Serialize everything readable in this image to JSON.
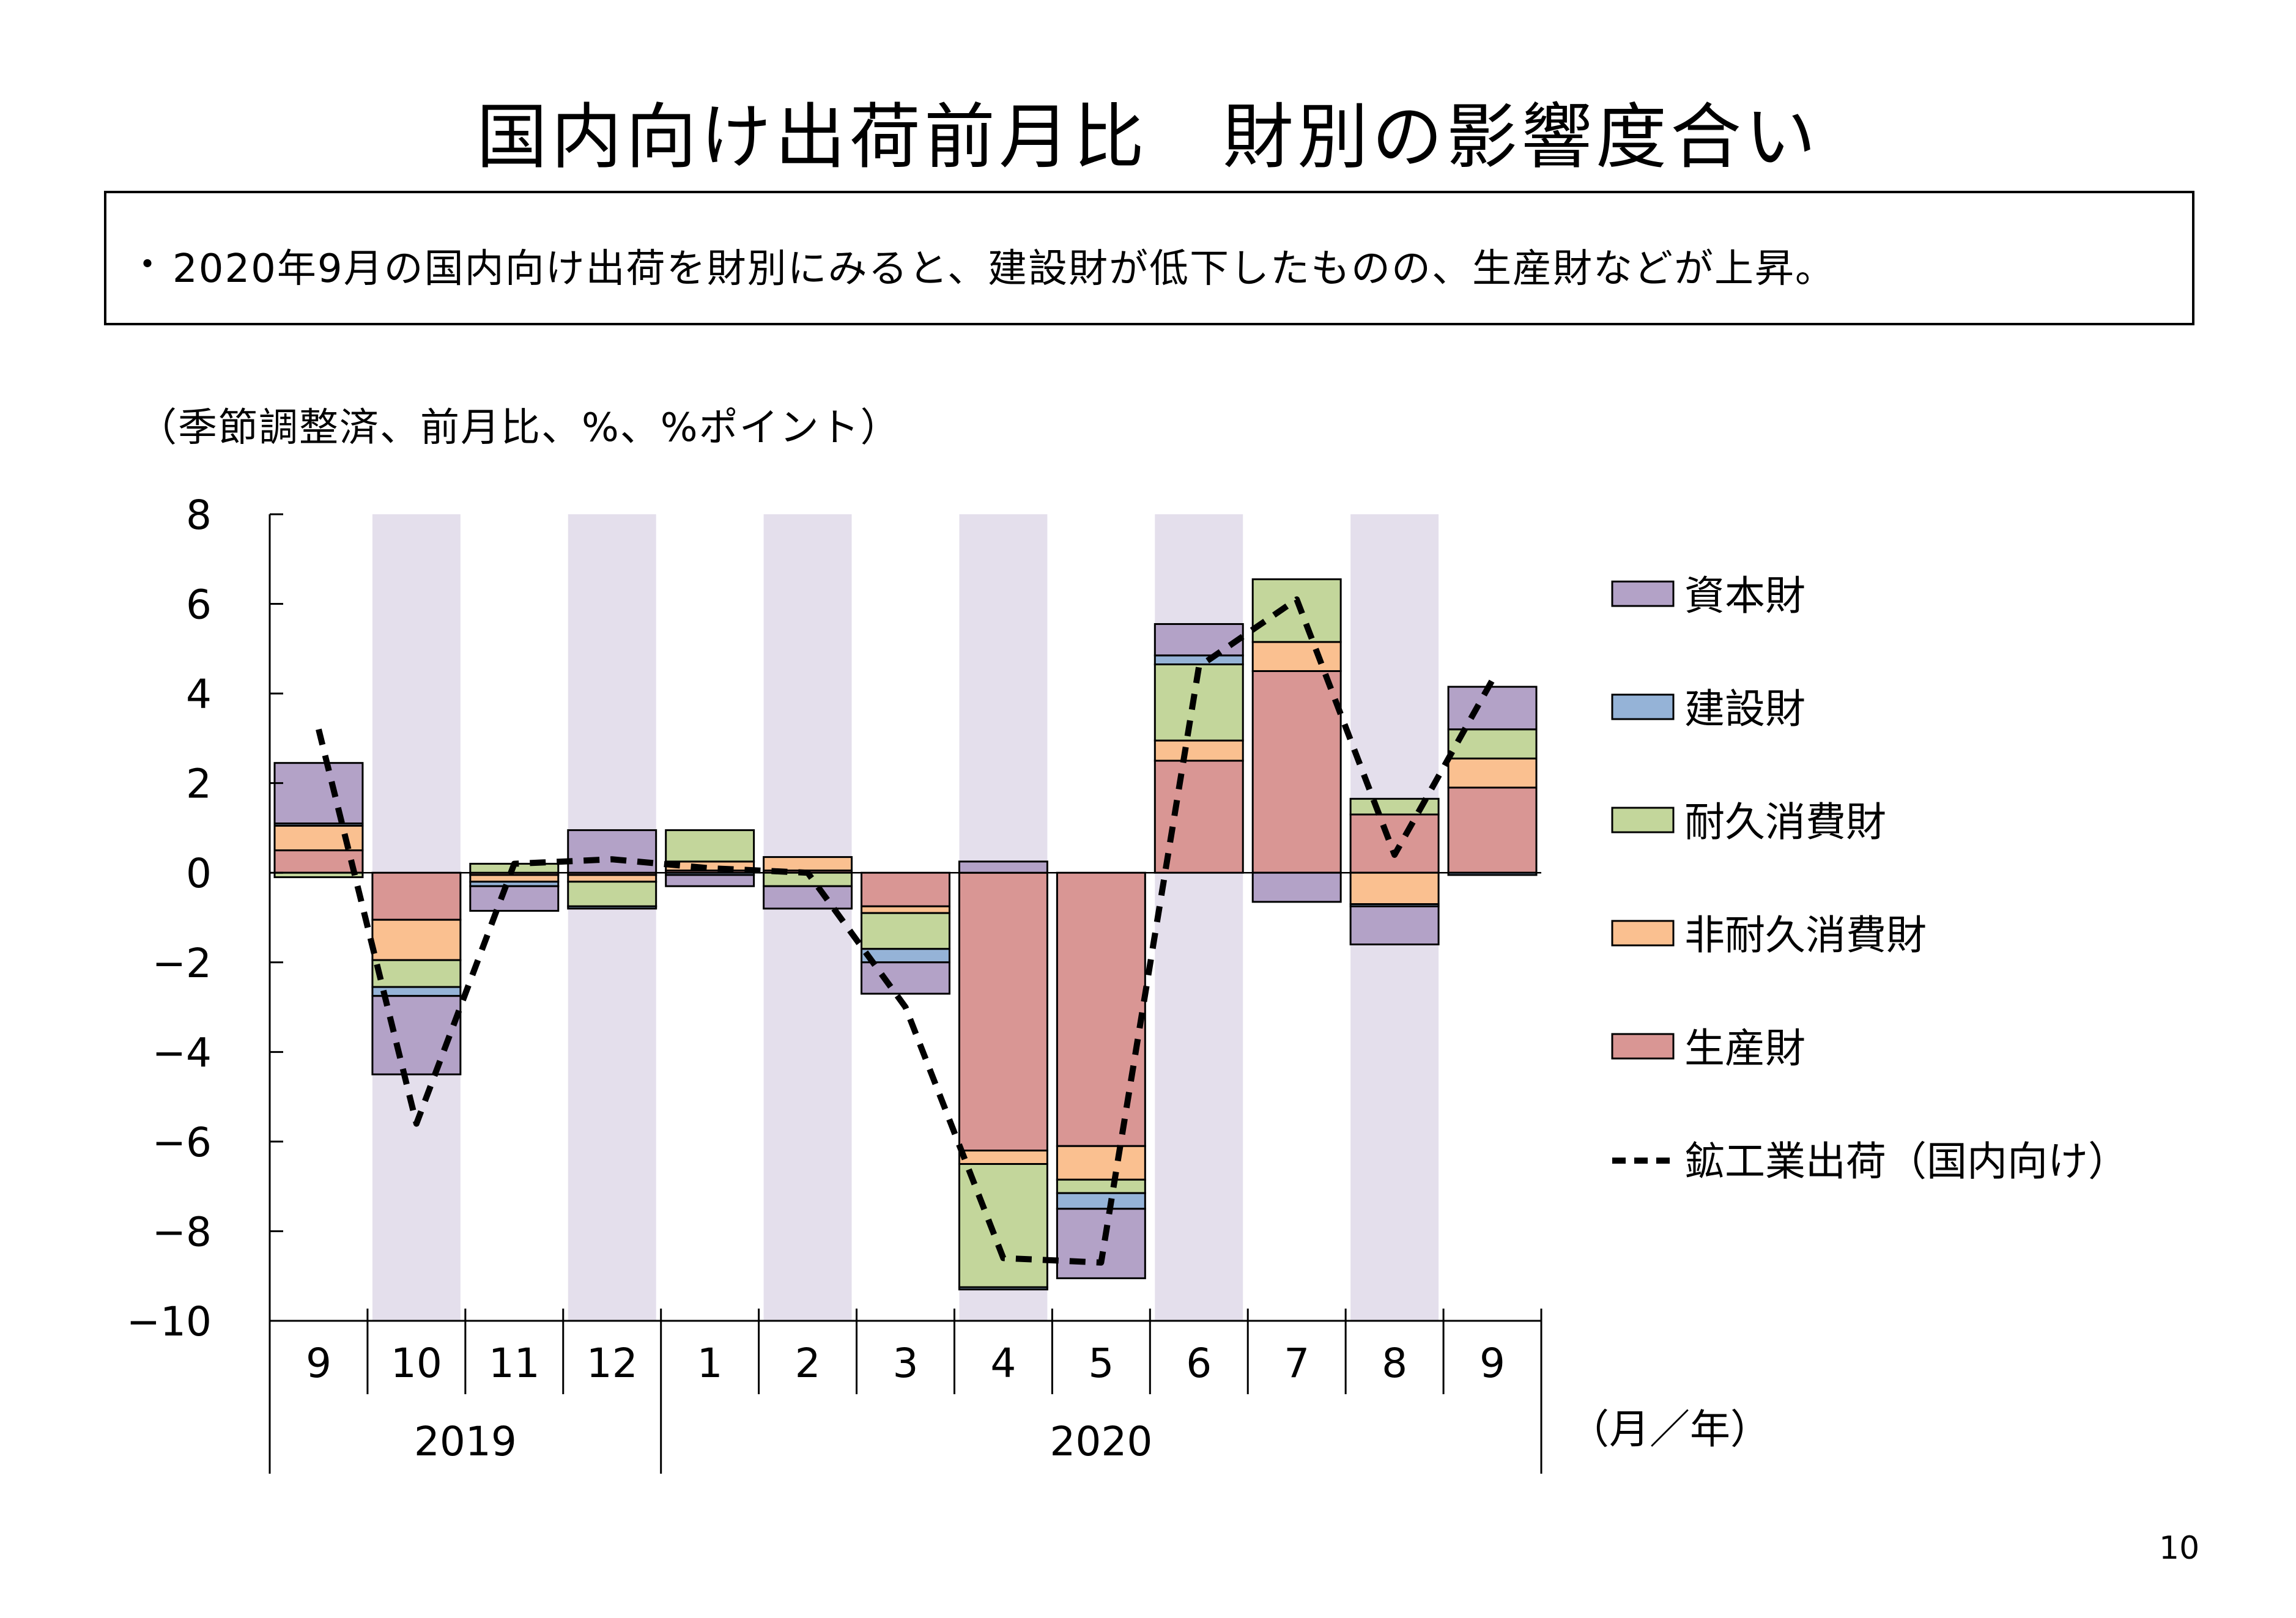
{
  "title": "国内向け出荷前月比　財別の影響度合い",
  "summary": {
    "bullet": "・",
    "text": "2020年9月の国内向け出荷を財別にみると、建設財が低下したものの、生産財などが上昇。"
  },
  "unit_note": "（季節調整済、前月比、%、%ポイント）",
  "page_number": "10",
  "chart_data": {
    "type": "bar",
    "stacked": true,
    "categories": [
      "9",
      "10",
      "11",
      "12",
      "1",
      "2",
      "3",
      "4",
      "5",
      "6",
      "7",
      "8",
      "9"
    ],
    "years": [
      {
        "label": "2019",
        "from": 0,
        "to": 3
      },
      {
        "label": "2020",
        "from": 4,
        "to": 12
      }
    ],
    "x_unit_label": "（月／年）",
    "ylim": [
      -10,
      8
    ],
    "yticks": [
      8,
      6,
      4,
      2,
      0,
      -2,
      -4,
      -6,
      -8,
      -10
    ],
    "shaded_categories": [
      1,
      3,
      5,
      7,
      9,
      11
    ],
    "series": [
      {
        "name": "生産財",
        "color": "#d99694",
        "values": [
          0.5,
          -1.05,
          -0.05,
          -0.05,
          0.05,
          0.05,
          -0.75,
          -6.2,
          -6.1,
          2.5,
          4.5,
          1.3,
          1.9
        ]
      },
      {
        "name": "非耐久消費財",
        "color": "#fac090",
        "values": [
          0.55,
          -0.9,
          -0.15,
          -0.15,
          0.2,
          0.3,
          -0.15,
          -0.3,
          -0.75,
          0.45,
          0.65,
          -0.7,
          0.65
        ]
      },
      {
        "name": "耐久消費財",
        "color": "#c3d69b",
        "values": [
          -0.1,
          -0.6,
          0.2,
          -0.55,
          0.7,
          -0.3,
          -0.8,
          -2.75,
          -0.3,
          1.7,
          1.4,
          0.35,
          0.65
        ]
      },
      {
        "name": "建設財",
        "color": "#95b3d7",
        "values": [
          0.05,
          -0.2,
          -0.1,
          -0.05,
          -0.05,
          0.0,
          -0.3,
          -0.05,
          -0.35,
          0.2,
          0.0,
          -0.05,
          -0.05
        ]
      },
      {
        "name": "資本財",
        "color": "#b3a2c7",
        "values": [
          1.35,
          -1.75,
          -0.55,
          0.95,
          -0.25,
          -0.5,
          -0.7,
          0.25,
          -1.55,
          0.7,
          -0.65,
          -0.85,
          0.95
        ]
      }
    ],
    "line": {
      "name": "鉱工業出荷（国内向け）",
      "color": "#000000",
      "style": "dashed",
      "values": [
        3.2,
        -5.6,
        0.2,
        0.3,
        0.1,
        0.0,
        -3.0,
        -8.6,
        -8.7,
        4.6,
        6.1,
        0.4,
        4.3
      ]
    },
    "legend": {
      "placement": "right",
      "order": [
        "資本財",
        "建設財",
        "耐久消費財",
        "非耐久消費財",
        "生産財",
        "鉱工業出荷（国内向け）"
      ]
    }
  }
}
